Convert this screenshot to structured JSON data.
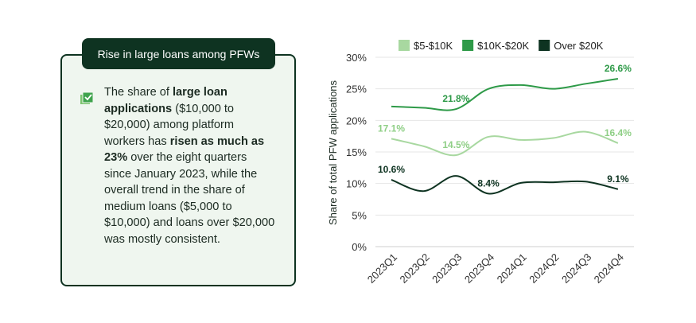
{
  "callout": {
    "title": "Rise in large loans among PFWs",
    "text_parts": [
      "The share of ",
      "large loan applications",
      " ($10,000 to $20,000) among platform workers has ",
      "risen as much as 23%",
      " over the eight quarters since January 2023, while the overall trend in the share of medium loans ($5,000 to $10,000) and loans over $20,000 was mostly consistent."
    ],
    "icon": "checklist-icon"
  },
  "chart_data": {
    "type": "line",
    "title": "",
    "xlabel": "",
    "ylabel": "Share of total PFW applications",
    "ylim": [
      0,
      30
    ],
    "yticks": [
      "0%",
      "5%",
      "10%",
      "15%",
      "20%",
      "25%",
      "30%"
    ],
    "categories": [
      "2023Q1",
      "2023Q2",
      "2023Q3",
      "2023Q4",
      "2024Q1",
      "2024Q2",
      "2024Q3",
      "2024Q4"
    ],
    "grid": true,
    "legend": "top",
    "series": [
      {
        "name": "$5-$10K",
        "color": "#a8d8a0",
        "values": [
          17.1,
          15.9,
          14.5,
          17.4,
          16.9,
          17.2,
          18.2,
          16.4
        ],
        "labels": {
          "0": "17.1%",
          "2": "14.5%",
          "7": "16.4%"
        }
      },
      {
        "name": "$10K-$20K",
        "color": "#2e9a48",
        "values": [
          22.2,
          22.0,
          21.8,
          25.0,
          25.6,
          25.0,
          25.8,
          26.6
        ],
        "labels": {
          "2": "21.8%",
          "7": "26.6%"
        }
      },
      {
        "name": "Over $20K",
        "color": "#0e3321",
        "values": [
          10.6,
          8.8,
          11.2,
          8.4,
          10.1,
          10.2,
          10.3,
          9.1
        ],
        "labels": {
          "0": "10.6%",
          "3": "8.4%",
          "7": "9.1%"
        }
      }
    ]
  }
}
